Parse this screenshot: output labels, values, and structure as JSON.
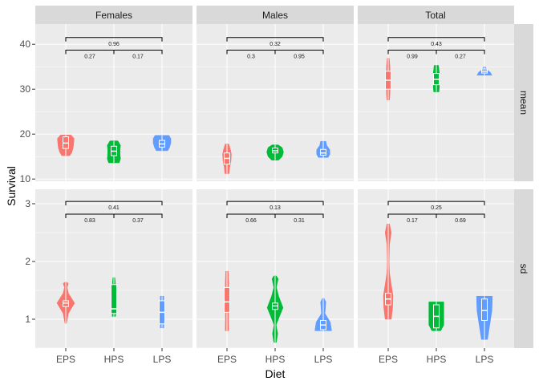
{
  "chart_data": {
    "type": "violin",
    "xlabel": "Diet",
    "ylabel": "Survival",
    "categories": [
      "EPS",
      "HPS",
      "LPS"
    ],
    "facet_columns": [
      "Females",
      "Males",
      "Total"
    ],
    "facet_rows": [
      "mean",
      "sd"
    ],
    "colors": {
      "EPS": "#F8766D",
      "HPS": "#00BA38",
      "LPS": "#619CFF"
    },
    "rows": [
      {
        "row": "mean",
        "ylim": [
          9.5,
          44.5
        ],
        "yticks": [
          10,
          20,
          30,
          40
        ],
        "tick_labels": [
          "10",
          "20",
          "30",
          "40"
        ],
        "panels": [
          {
            "facet": "Females",
            "groups": [
              {
                "diet": "EPS",
                "min": 15.2,
                "max": 19.8,
                "q1": 16.8,
                "median": 18.0,
                "q3": 19.4,
                "density": [
                  [
                    15.2,
                    0.45
                  ],
                  [
                    16.0,
                    0.7
                  ],
                  [
                    17.0,
                    0.85
                  ],
                  [
                    18.0,
                    0.9
                  ],
                  [
                    19.0,
                    0.95
                  ],
                  [
                    19.8,
                    0.6
                  ]
                ]
              },
              {
                "diet": "HPS",
                "min": 13.6,
                "max": 18.5,
                "q1": 15.2,
                "median": 16.2,
                "q3": 17.3,
                "density": [
                  [
                    13.6,
                    0.6
                  ],
                  [
                    14.5,
                    0.75
                  ],
                  [
                    15.5,
                    0.7
                  ],
                  [
                    16.5,
                    0.7
                  ],
                  [
                    17.5,
                    0.75
                  ],
                  [
                    18.5,
                    0.45
                  ]
                ]
              },
              {
                "diet": "LPS",
                "min": 16.3,
                "max": 19.7,
                "q1": 17.1,
                "median": 17.8,
                "q3": 18.6,
                "density": [
                  [
                    16.3,
                    0.65
                  ],
                  [
                    17.0,
                    0.85
                  ],
                  [
                    18.0,
                    1.0
                  ],
                  [
                    19.0,
                    1.0
                  ],
                  [
                    19.7,
                    0.8
                  ]
                ]
              }
            ],
            "brackets": [
              {
                "from": "EPS",
                "to": "LPS",
                "y": 41.5,
                "label": "0.96"
              },
              {
                "from": "EPS",
                "to": "HPS",
                "y": 38.7,
                "label": "0.27"
              },
              {
                "from": "HPS",
                "to": "LPS",
                "y": 38.7,
                "label": "0.17"
              }
            ]
          },
          {
            "facet": "Males",
            "groups": [
              {
                "diet": "EPS",
                "min": 11.2,
                "max": 17.8,
                "q1": 13.3,
                "median": 14.6,
                "q3": 15.8,
                "density": [
                  [
                    11.2,
                    0.25
                  ],
                  [
                    12.5,
                    0.3
                  ],
                  [
                    14.0,
                    0.45
                  ],
                  [
                    15.5,
                    0.5
                  ],
                  [
                    16.5,
                    0.4
                  ],
                  [
                    17.8,
                    0.2
                  ]
                ]
              },
              {
                "diet": "HPS",
                "min": 14.2,
                "max": 17.6,
                "q1": 15.8,
                "median": 16.3,
                "q3": 16.9,
                "density": [
                  [
                    14.2,
                    0.4
                  ],
                  [
                    15.0,
                    0.8
                  ],
                  [
                    16.0,
                    0.95
                  ],
                  [
                    17.0,
                    0.8
                  ],
                  [
                    17.6,
                    0.35
                  ]
                ]
              },
              {
                "diet": "LPS",
                "min": 14.8,
                "max": 18.4,
                "q1": 15.3,
                "median": 15.8,
                "q3": 16.6,
                "density": [
                  [
                    14.8,
                    0.55
                  ],
                  [
                    15.5,
                    0.75
                  ],
                  [
                    16.5,
                    0.75
                  ],
                  [
                    17.5,
                    0.4
                  ],
                  [
                    18.4,
                    0.3
                  ]
                ]
              }
            ],
            "brackets": [
              {
                "from": "EPS",
                "to": "LPS",
                "y": 41.5,
                "label": "0.32"
              },
              {
                "from": "EPS",
                "to": "HPS",
                "y": 38.7,
                "label": "0.3"
              },
              {
                "from": "HPS",
                "to": "LPS",
                "y": 38.7,
                "label": "0.95"
              }
            ]
          },
          {
            "facet": "Total",
            "groups": [
              {
                "diet": "EPS",
                "min": 27.6,
                "max": 36.9,
                "q1": 30.0,
                "median": 32.0,
                "q3": 34.0,
                "density": [
                  [
                    27.6,
                    0.15
                  ],
                  [
                    29.0,
                    0.2
                  ],
                  [
                    31.0,
                    0.22
                  ],
                  [
                    33.0,
                    0.22
                  ],
                  [
                    35.0,
                    0.2
                  ],
                  [
                    36.9,
                    0.12
                  ]
                ]
              },
              {
                "diet": "HPS",
                "min": 29.4,
                "max": 35.3,
                "q1": 31.0,
                "median": 32.2,
                "q3": 33.5,
                "density": [
                  [
                    29.4,
                    0.3
                  ],
                  [
                    30.5,
                    0.35
                  ],
                  [
                    32.0,
                    0.3
                  ],
                  [
                    33.5,
                    0.35
                  ],
                  [
                    35.3,
                    0.25
                  ]
                ]
              },
              {
                "diet": "LPS",
                "min": 33.1,
                "max": 35.0,
                "q1": 33.6,
                "median": 34.0,
                "q3": 34.5,
                "density": [
                  [
                    33.1,
                    0.85
                  ],
                  [
                    33.8,
                    0.65
                  ],
                  [
                    34.3,
                    0.3
                  ],
                  [
                    35.0,
                    0.1
                  ]
                ]
              }
            ],
            "brackets": [
              {
                "from": "EPS",
                "to": "LPS",
                "y": 41.5,
                "label": "0.43"
              },
              {
                "from": "EPS",
                "to": "HPS",
                "y": 38.7,
                "label": "0.99"
              },
              {
                "from": "HPS",
                "to": "LPS",
                "y": 38.7,
                "label": "0.27"
              }
            ]
          }
        ]
      },
      {
        "row": "sd",
        "ylim": [
          0.5,
          3.25
        ],
        "yticks": [
          1,
          2,
          3
        ],
        "tick_labels": [
          "1",
          "2",
          "3"
        ],
        "panels": [
          {
            "facet": "Females",
            "groups": [
              {
                "diet": "EPS",
                "min": 0.93,
                "max": 1.64,
                "q1": 1.22,
                "median": 1.28,
                "q3": 1.32,
                "density": [
                  [
                    0.93,
                    0.1
                  ],
                  [
                    1.0,
                    0.18
                  ],
                  [
                    1.1,
                    0.3
                  ],
                  [
                    1.28,
                    1.0
                  ],
                  [
                    1.45,
                    0.3
                  ],
                  [
                    1.55,
                    0.15
                  ],
                  [
                    1.62,
                    0.3
                  ],
                  [
                    1.64,
                    0.1
                  ]
                ]
              },
              {
                "diet": "HPS",
                "min": 1.05,
                "max": 1.72,
                "q1": 1.1,
                "median": 1.18,
                "q3": 1.6,
                "density": [
                  [
                    1.05,
                    0.2
                  ],
                  [
                    1.15,
                    0.22
                  ],
                  [
                    1.3,
                    0.15
                  ],
                  [
                    1.5,
                    0.12
                  ],
                  [
                    1.6,
                    0.18
                  ],
                  [
                    1.72,
                    0.12
                  ]
                ]
              },
              {
                "diet": "LPS",
                "min": 0.85,
                "max": 1.4,
                "q1": 0.92,
                "median": 1.12,
                "q3": 1.32,
                "density": [
                  [
                    0.85,
                    0.2
                  ],
                  [
                    1.0,
                    0.2
                  ],
                  [
                    1.2,
                    0.2
                  ],
                  [
                    1.4,
                    0.2
                  ]
                ]
              }
            ],
            "brackets": [
              {
                "from": "EPS",
                "to": "LPS",
                "y": 3.04,
                "label": "0.41"
              },
              {
                "from": "EPS",
                "to": "HPS",
                "y": 2.82,
                "label": "0.83"
              },
              {
                "from": "HPS",
                "to": "LPS",
                "y": 2.82,
                "label": "0.37"
              }
            ]
          },
          {
            "facet": "Males",
            "groups": [
              {
                "diet": "EPS",
                "min": 0.8,
                "max": 1.83,
                "q1": 1.12,
                "median": 1.3,
                "q3": 1.55,
                "density": [
                  [
                    0.8,
                    0.2
                  ],
                  [
                    1.0,
                    0.18
                  ],
                  [
                    1.3,
                    0.2
                  ],
                  [
                    1.6,
                    0.2
                  ],
                  [
                    1.83,
                    0.15
                  ]
                ]
              },
              {
                "diet": "HPS",
                "min": 0.6,
                "max": 1.75,
                "q1": 1.17,
                "median": 1.23,
                "q3": 1.28,
                "density": [
                  [
                    0.6,
                    0.15
                  ],
                  [
                    0.75,
                    0.3
                  ],
                  [
                    0.9,
                    0.12
                  ],
                  [
                    1.05,
                    0.5
                  ],
                  [
                    1.2,
                    0.9
                  ],
                  [
                    1.4,
                    0.4
                  ],
                  [
                    1.55,
                    0.15
                  ],
                  [
                    1.7,
                    0.35
                  ],
                  [
                    1.75,
                    0.15
                  ]
                ]
              },
              {
                "diet": "LPS",
                "min": 0.8,
                "max": 1.36,
                "q1": 0.82,
                "median": 0.9,
                "q3": 0.98,
                "density": [
                  [
                    0.8,
                    0.95
                  ],
                  [
                    0.95,
                    0.8
                  ],
                  [
                    1.1,
                    0.2
                  ],
                  [
                    1.3,
                    0.3
                  ],
                  [
                    1.36,
                    0.1
                  ]
                ]
              }
            ],
            "brackets": [
              {
                "from": "EPS",
                "to": "LPS",
                "y": 3.04,
                "label": "0.13"
              },
              {
                "from": "EPS",
                "to": "HPS",
                "y": 2.82,
                "label": "0.66"
              },
              {
                "from": "HPS",
                "to": "LPS",
                "y": 2.82,
                "label": "0.31"
              }
            ]
          },
          {
            "facet": "Total",
            "groups": [
              {
                "diet": "EPS",
                "min": 1.0,
                "max": 2.65,
                "q1": 1.25,
                "median": 1.35,
                "q3": 1.45,
                "density": [
                  [
                    1.0,
                    0.35
                  ],
                  [
                    1.2,
                    0.5
                  ],
                  [
                    1.4,
                    0.55
                  ],
                  [
                    1.6,
                    0.35
                  ],
                  [
                    1.8,
                    0.15
                  ],
                  [
                    2.0,
                    0.1
                  ],
                  [
                    2.3,
                    0.15
                  ],
                  [
                    2.5,
                    0.35
                  ],
                  [
                    2.65,
                    0.15
                  ]
                ]
              },
              {
                "diet": "HPS",
                "min": 0.8,
                "max": 1.3,
                "q1": 0.85,
                "median": 1.05,
                "q3": 1.25,
                "density": [
                  [
                    0.8,
                    0.5
                  ],
                  [
                    0.9,
                    0.85
                  ],
                  [
                    1.1,
                    0.85
                  ],
                  [
                    1.2,
                    0.85
                  ],
                  [
                    1.3,
                    0.85
                  ]
                ]
              },
              {
                "diet": "LPS",
                "min": 0.65,
                "max": 1.4,
                "q1": 0.98,
                "median": 1.15,
                "q3": 1.35,
                "density": [
                  [
                    0.65,
                    0.35
                  ],
                  [
                    0.9,
                    0.6
                  ],
                  [
                    1.15,
                    0.85
                  ],
                  [
                    1.4,
                    0.9
                  ]
                ]
              }
            ],
            "brackets": [
              {
                "from": "EPS",
                "to": "LPS",
                "y": 3.04,
                "label": "0.25"
              },
              {
                "from": "EPS",
                "to": "HPS",
                "y": 2.82,
                "label": "0.17"
              },
              {
                "from": "HPS",
                "to": "LPS",
                "y": 2.82,
                "label": "0.69"
              }
            ]
          }
        ]
      }
    ]
  }
}
